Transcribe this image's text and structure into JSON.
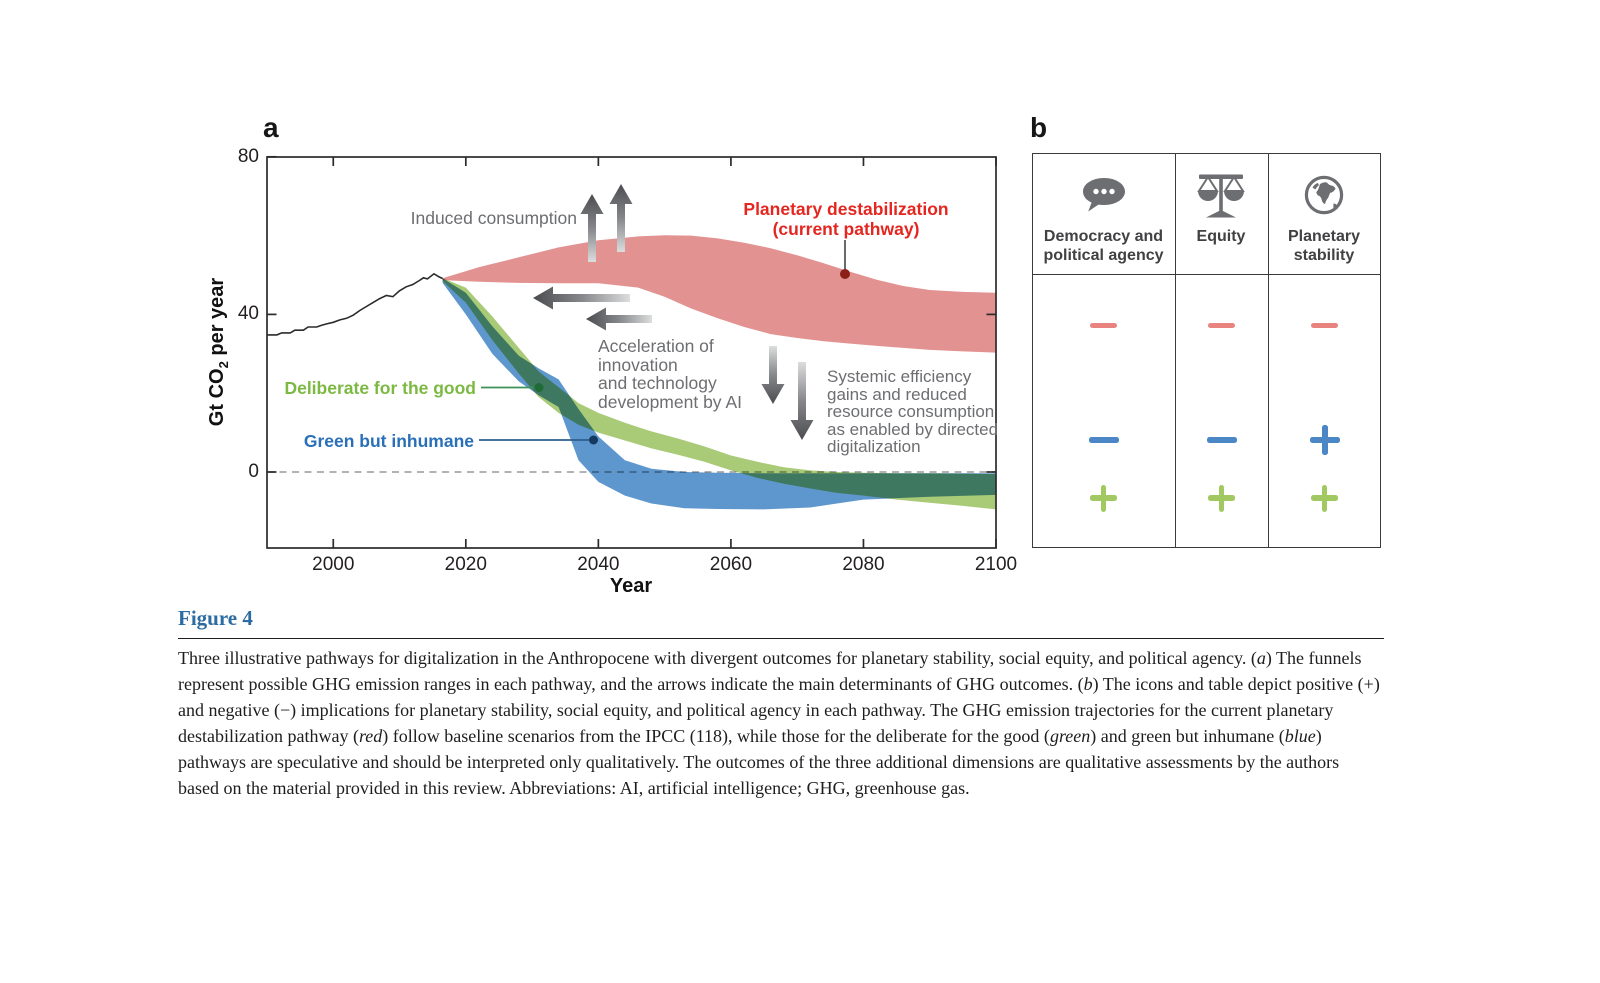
{
  "panels": {
    "a_label": "a",
    "b_label": "b"
  },
  "chart_data": {
    "type": "area",
    "title": "Three illustrative pathways for digitalization in the Anthropocene",
    "xlabel": "Year",
    "ylabel_parts": [
      "Gt CO",
      "2",
      " per year"
    ],
    "x_ticks": [
      2000,
      2020,
      2040,
      2060,
      2080,
      2100
    ],
    "y_ticks": [
      0,
      40,
      80
    ],
    "xlim": [
      1990,
      2100
    ],
    "ylim": [
      -19,
      80
    ],
    "grid": false,
    "axis_color": "#2b2b2c",
    "zero_line": {
      "value": 0,
      "style": "dashed",
      "color": "#a6a8ab"
    },
    "historical_line": {
      "name": "historical-emissions",
      "color": "#2b2b2c",
      "points": [
        [
          1990,
          34.8
        ],
        [
          1991.5,
          34.8
        ],
        [
          1992.2,
          35.3
        ],
        [
          1993.5,
          35.3
        ],
        [
          1994.2,
          36
        ],
        [
          1995.5,
          36
        ],
        [
          1996.2,
          36.8
        ],
        [
          1997.5,
          36.8
        ],
        [
          1998.2,
          37.2
        ],
        [
          1999,
          37.6
        ],
        [
          2000,
          38
        ],
        [
          2001,
          38.6
        ],
        [
          2002,
          39
        ],
        [
          2003,
          39.8
        ],
        [
          2004,
          41
        ],
        [
          2005,
          42
        ],
        [
          2006,
          43
        ],
        [
          2007,
          44
        ],
        [
          2008,
          44.8
        ],
        [
          2009,
          44.5
        ],
        [
          2010,
          46
        ],
        [
          2011,
          47
        ],
        [
          2012,
          47.6
        ],
        [
          2013,
          48.6
        ],
        [
          2013.6,
          49.3
        ],
        [
          2014.2,
          49
        ],
        [
          2015.2,
          50.3
        ],
        [
          2016,
          49.5
        ],
        [
          2016.5,
          49.1
        ]
      ]
    },
    "bands": [
      {
        "name": "planetary-destabilization",
        "label": "Planetary destabilization\n(current pathway)",
        "color": "#e29290",
        "label_color": "#e52620",
        "slices": [
          [
            2016.5,
            48.7,
            49.2
          ],
          [
            2022,
            48.3,
            52
          ],
          [
            2028,
            48,
            54.5
          ],
          [
            2034,
            47.9,
            57
          ],
          [
            2040,
            47.9,
            58.8
          ],
          [
            2046,
            46.8,
            59.8
          ],
          [
            2050,
            44.5,
            60.1
          ],
          [
            2054,
            41.5,
            60
          ],
          [
            2058,
            39,
            59.3
          ],
          [
            2062,
            36.8,
            58.2
          ],
          [
            2066,
            35,
            56.8
          ],
          [
            2070,
            34,
            55
          ],
          [
            2074,
            33.2,
            53
          ],
          [
            2078,
            32.6,
            50.8
          ],
          [
            2082,
            32,
            48.8
          ],
          [
            2086,
            31.5,
            47.2
          ],
          [
            2090,
            31,
            46.2
          ],
          [
            2095,
            30.6,
            45.7
          ],
          [
            2100,
            30.3,
            45.5
          ]
        ]
      },
      {
        "name": "deliberate-for-the-good",
        "label": "Deliberate for the good",
        "color": "#a9cb77",
        "label_color": "#7cb942",
        "slices": [
          [
            2016.5,
            48.4,
            49.2
          ],
          [
            2020,
            43,
            46.8
          ],
          [
            2024,
            33.5,
            39.5
          ],
          [
            2028,
            25,
            31.5
          ],
          [
            2031,
            19,
            25.5
          ],
          [
            2034,
            15,
            21.5
          ],
          [
            2037,
            12,
            17.5
          ],
          [
            2040,
            10,
            15
          ],
          [
            2044,
            8,
            12.5
          ],
          [
            2048,
            6,
            10.3
          ],
          [
            2052,
            4.4,
            8.5
          ],
          [
            2056,
            2.6,
            6.5
          ],
          [
            2060,
            0.4,
            4.2
          ],
          [
            2064,
            -1.5,
            2.6
          ],
          [
            2068,
            -3,
            1.2
          ],
          [
            2072,
            -4.2,
            0.4
          ],
          [
            2076,
            -5.3,
            0
          ],
          [
            2080,
            -6,
            -0.2
          ],
          [
            2085,
            -7,
            -0.3
          ],
          [
            2090,
            -7.8,
            -0.3
          ],
          [
            2095,
            -8.6,
            -0.4
          ],
          [
            2100,
            -9.5,
            -0.5
          ]
        ]
      },
      {
        "name": "green-but-inhumane",
        "label": "Green but inhumane",
        "color": "#5e97cd",
        "label_color": "#2a70b8",
        "slices": [
          [
            2016.5,
            48,
            49.2
          ],
          [
            2020,
            40,
            45.5
          ],
          [
            2024,
            30,
            37
          ],
          [
            2028,
            23,
            29.5
          ],
          [
            2031,
            19.5,
            26.3
          ],
          [
            2034,
            16.5,
            23.5
          ],
          [
            2037,
            3,
            16
          ],
          [
            2040,
            -2.5,
            9
          ],
          [
            2044,
            -6,
            3
          ],
          [
            2048,
            -8,
            0.8
          ],
          [
            2053,
            -9.2,
            0
          ],
          [
            2058,
            -9.4,
            -0.2
          ],
          [
            2065,
            -9.5,
            -0.3
          ],
          [
            2072,
            -9,
            -0.3
          ],
          [
            2076,
            -8,
            -0.3
          ],
          [
            2080,
            -7,
            -0.3
          ],
          [
            2090,
            -6.3,
            -0.3
          ],
          [
            2100,
            -5.8,
            -0.3
          ]
        ]
      }
    ],
    "annotations": {
      "induced_consumption": "Induced consumption",
      "acceleration": "Acceleration of\ninnovation\nand technology\ndevelopment by AI",
      "systemic": "Systemic efficiency\ngains and reduced\nresource consumption\nas enabled by directed\ndigitalization"
    },
    "leaders": {
      "red_line": "#58595b",
      "red_dot": "#8c1f17",
      "green_line": "#3f9257",
      "green_dot": "#1e6b38",
      "blue_line": "#2b5f8e",
      "blue_dot": "#16395f"
    },
    "arrow_groups": [
      "induced-consumption-up-arrows",
      "acceleration-left-arrows",
      "systemic-down-arrows"
    ]
  },
  "panel_b": {
    "columns": [
      {
        "icon": "speech-bubble-icon",
        "label": "Democracy and\npolitical agency"
      },
      {
        "icon": "scales-icon",
        "label": "Equity"
      },
      {
        "icon": "globe-icon",
        "label": "Planetary\nstability"
      }
    ],
    "rows": [
      {
        "pathway": "Planetary destabilization (current pathway)",
        "color": "#e8837f",
        "values": [
          "−",
          "−",
          "−"
        ]
      },
      {
        "pathway": "Green but inhumane",
        "color": "#4b87c5",
        "values": [
          "−",
          "−",
          "+"
        ]
      },
      {
        "pathway": "Deliberate for the good",
        "color": "#a2c862",
        "values": [
          "+",
          "+",
          "+"
        ]
      }
    ]
  },
  "caption": {
    "label": "Figure 4",
    "segments": [
      {
        "text": "Three illustrative pathways for digitalization in the Anthropocene with divergent outcomes for planetary stability, social equity, and political agency. (",
        "italic": false
      },
      {
        "text": "a",
        "italic": true
      },
      {
        "text": ") The funnels represent possible GHG emission ranges in each pathway, and the arrows indicate the main determinants of GHG outcomes. (",
        "italic": false
      },
      {
        "text": "b",
        "italic": true
      },
      {
        "text": ") The icons and table depict positive (+) and negative (−) implications for planetary stability, social equity, and political agency in each pathway. The GHG emission trajectories for the current planetary destabilization pathway (",
        "italic": false
      },
      {
        "text": "red",
        "italic": true
      },
      {
        "text": ") follow baseline scenarios from the IPCC (118), while those for the deliberate for the good (",
        "italic": false
      },
      {
        "text": "green",
        "italic": true
      },
      {
        "text": ") and green but inhumane (",
        "italic": false
      },
      {
        "text": "blue",
        "italic": true
      },
      {
        "text": ") pathways are speculative and should be interpreted only qualitatively. The outcomes of the three additional dimensions are qualitative assessments by the authors based on the material provided in this review. Abbreviations: AI, artificial intelligence; GHG, greenhouse gas.",
        "italic": false
      }
    ]
  }
}
